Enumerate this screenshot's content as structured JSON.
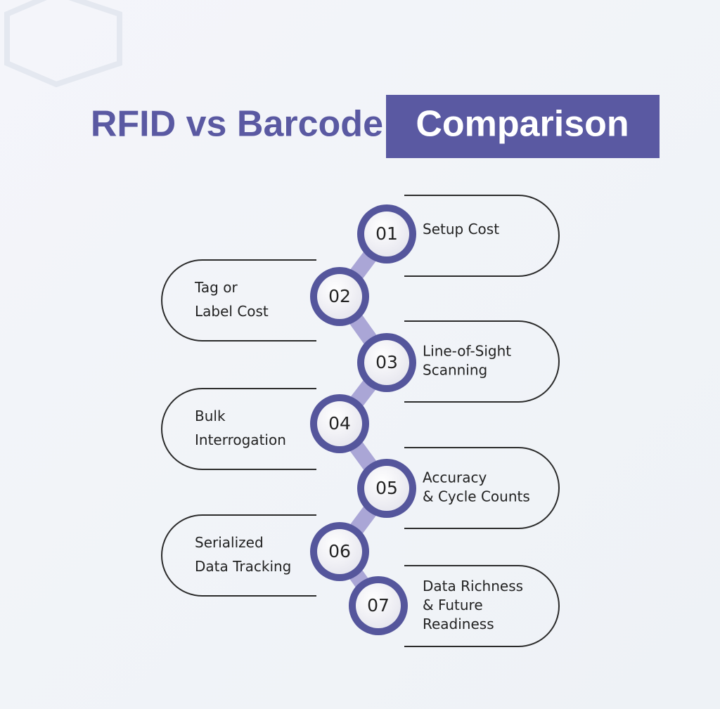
{
  "title": {
    "part1": "RFID vs Barcode",
    "part2": "Comparison"
  },
  "items": [
    {
      "number": "01",
      "lines": [
        "Setup Cost"
      ]
    },
    {
      "number": "02",
      "lines": [
        "Tag or",
        "Label Cost"
      ]
    },
    {
      "number": "03",
      "lines": [
        "Line-of-Sight",
        "Scanning"
      ]
    },
    {
      "number": "04",
      "lines": [
        "Bulk",
        "Interrogation"
      ]
    },
    {
      "number": "05",
      "lines": [
        "Accuracy",
        "& Cycle Counts"
      ]
    },
    {
      "number": "06",
      "lines": [
        "Serialized",
        "Data Tracking"
      ]
    },
    {
      "number": "07",
      "lines": [
        "Data Richness",
        "& Future",
        "Readiness"
      ]
    }
  ]
}
